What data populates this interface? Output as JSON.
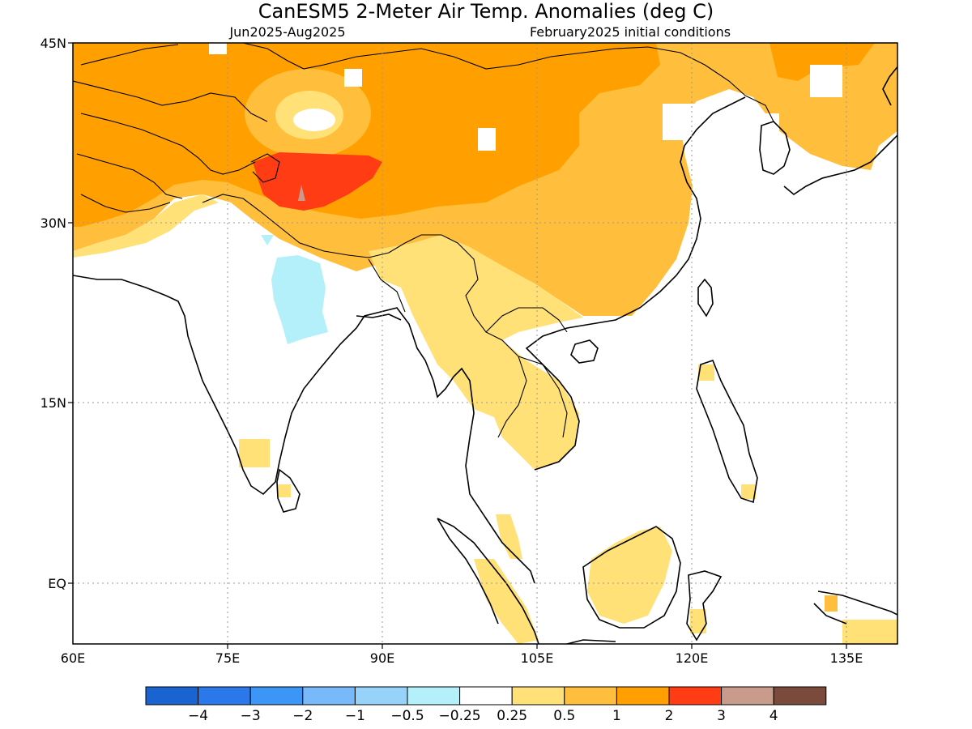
{
  "figure": {
    "title": "CanESM5 2-Meter Air Temp. Anomalies (deg C)",
    "period": "Jun2025-Aug2025",
    "init": "February2025 initial conditions"
  },
  "map": {
    "lon_range": [
      60,
      140
    ],
    "lat_range": [
      -6,
      45
    ],
    "lat_ticks": [
      {
        "value": 45,
        "label": "45N"
      },
      {
        "value": 30,
        "label": "30N"
      },
      {
        "value": 15,
        "label": "15N"
      },
      {
        "value": 0,
        "label": "EQ"
      }
    ],
    "lon_ticks": [
      {
        "value": 60,
        "label": "60E"
      },
      {
        "value": 75,
        "label": "75E"
      },
      {
        "value": 90,
        "label": "90E"
      },
      {
        "value": 105,
        "label": "105E"
      },
      {
        "value": 120,
        "label": "120E"
      },
      {
        "value": 135,
        "label": "135E"
      }
    ],
    "grid": "dotted"
  },
  "colorbar": {
    "colors": [
      "#1a64d2",
      "#2b78ea",
      "#3c96f5",
      "#78b9fa",
      "#96d2fa",
      "#b4f0fa",
      "#ffffff",
      "#ffe178",
      "#ffbe3c",
      "#ffa000",
      "#ff3c14",
      "#c89b8c",
      "#7a4b3c"
    ],
    "labels": [
      "-4",
      "-3",
      "-2",
      "-1",
      "-0.5",
      "-0.25",
      "0.25",
      "0.5",
      "1",
      "2",
      "3",
      "4"
    ]
  },
  "legend_entries": {
    "white": "-0.25 to 0.25",
    "lightblue": "-0.5 to -0.25",
    "yellow": "0.25 to 0.5",
    "lightorange": "0.5 to 1",
    "orange": "1 to 2",
    "red": "2 to 3",
    "tan": "3 to 4"
  }
}
